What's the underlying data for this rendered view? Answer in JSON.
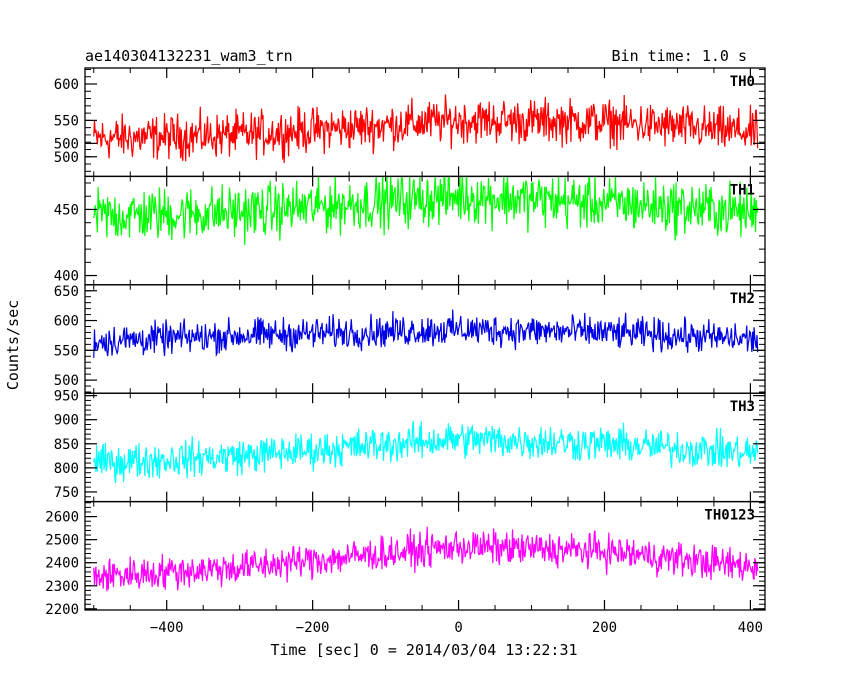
{
  "chart_data": {
    "type": "line",
    "title": "ae140304132231_wam3_trn",
    "bin_label": "Bin time: 1.0 s",
    "xlabel": "Time [sec] 0 = 2014/03/04 13:22:31",
    "ylabel": "Counts/sec",
    "xlim": [
      -512,
      420
    ],
    "x_data_range": [
      -500,
      410
    ],
    "x_ticks": [
      -400,
      -200,
      0,
      200,
      400
    ],
    "x_tick_labels": [
      "−400",
      "−200",
      "0",
      "200",
      "400"
    ],
    "panels": [
      {
        "name": "TH0",
        "color": "#ff0000",
        "ylim": [
          473,
          622
        ],
        "y_ticks": [
          500,
          550,
          600
        ],
        "y_tick_labels": [
          "500",
          "550",
          "600"
        ],
        "baseline": [
          [
            -500,
            525
          ],
          [
            -300,
            530
          ],
          [
            0,
            550
          ],
          [
            200,
            548
          ],
          [
            410,
            533
          ]
        ],
        "amplitude": 45,
        "values_sample": [
          {
            "x": -400,
            "y": 528
          },
          {
            "x": -200,
            "y": 535
          },
          {
            "x": 0,
            "y": 552
          },
          {
            "x": 200,
            "y": 547
          },
          {
            "x": 400,
            "y": 532
          }
        ]
      },
      {
        "name": "TH1",
        "color": "#00ff00",
        "ylim": [
          393,
          475
        ],
        "y_ticks": [
          400,
          450,
          500
        ],
        "y_tick_labels": [
          "400",
          "450",
          "500"
        ],
        "baseline": [
          [
            -500,
            445
          ],
          [
            -300,
            448
          ],
          [
            0,
            460
          ],
          [
            200,
            455
          ],
          [
            410,
            448
          ]
        ],
        "amplitude": 30,
        "values_sample": [
          {
            "x": -400,
            "y": 446
          },
          {
            "x": -200,
            "y": 450
          },
          {
            "x": 0,
            "y": 461
          },
          {
            "x": 200,
            "y": 455
          },
          {
            "x": 400,
            "y": 448
          }
        ]
      },
      {
        "name": "TH2",
        "color": "#0000e6",
        "ylim": [
          478,
          660
        ],
        "y_ticks": [
          500,
          550,
          600,
          650
        ],
        "y_tick_labels": [
          "500",
          "550",
          "600",
          "650"
        ],
        "baseline": [
          [
            -500,
            565
          ],
          [
            -300,
            575
          ],
          [
            0,
            585
          ],
          [
            200,
            580
          ],
          [
            410,
            568
          ]
        ],
        "amplitude": 40,
        "values_sample": [
          {
            "x": -400,
            "y": 568
          },
          {
            "x": -200,
            "y": 578
          },
          {
            "x": 0,
            "y": 585
          },
          {
            "x": 200,
            "y": 579
          },
          {
            "x": 400,
            "y": 566
          }
        ]
      },
      {
        "name": "TH3",
        "color": "#00ffff",
        "ylim": [
          730,
          955
        ],
        "y_ticks": [
          750,
          800,
          850,
          900,
          950
        ],
        "y_tick_labels": [
          "750",
          "800",
          "850",
          "900",
          "950"
        ],
        "baseline": [
          [
            -500,
            810
          ],
          [
            -300,
            825
          ],
          [
            0,
            860
          ],
          [
            200,
            850
          ],
          [
            410,
            830
          ]
        ],
        "amplitude": 55,
        "values_sample": [
          {
            "x": -400,
            "y": 815
          },
          {
            "x": -200,
            "y": 835
          },
          {
            "x": 0,
            "y": 860
          },
          {
            "x": 200,
            "y": 850
          },
          {
            "x": 400,
            "y": 828
          }
        ]
      },
      {
        "name": "TH0123",
        "color": "#ff00ff",
        "ylim": [
          2195,
          2665
        ],
        "y_ticks": [
          2200,
          2300,
          2400,
          2500,
          2600
        ],
        "y_tick_labels": [
          "2200",
          "2300",
          "2400",
          "2500",
          "2600"
        ],
        "baseline": [
          [
            -500,
            2340
          ],
          [
            -300,
            2380
          ],
          [
            0,
            2470
          ],
          [
            200,
            2450
          ],
          [
            410,
            2380
          ]
        ],
        "amplitude": 110,
        "values_sample": [
          {
            "x": -400,
            "y": 2350
          },
          {
            "x": -200,
            "y": 2400
          },
          {
            "x": 0,
            "y": 2470
          },
          {
            "x": 200,
            "y": 2450
          },
          {
            "x": 400,
            "y": 2385
          }
        ]
      }
    ]
  }
}
